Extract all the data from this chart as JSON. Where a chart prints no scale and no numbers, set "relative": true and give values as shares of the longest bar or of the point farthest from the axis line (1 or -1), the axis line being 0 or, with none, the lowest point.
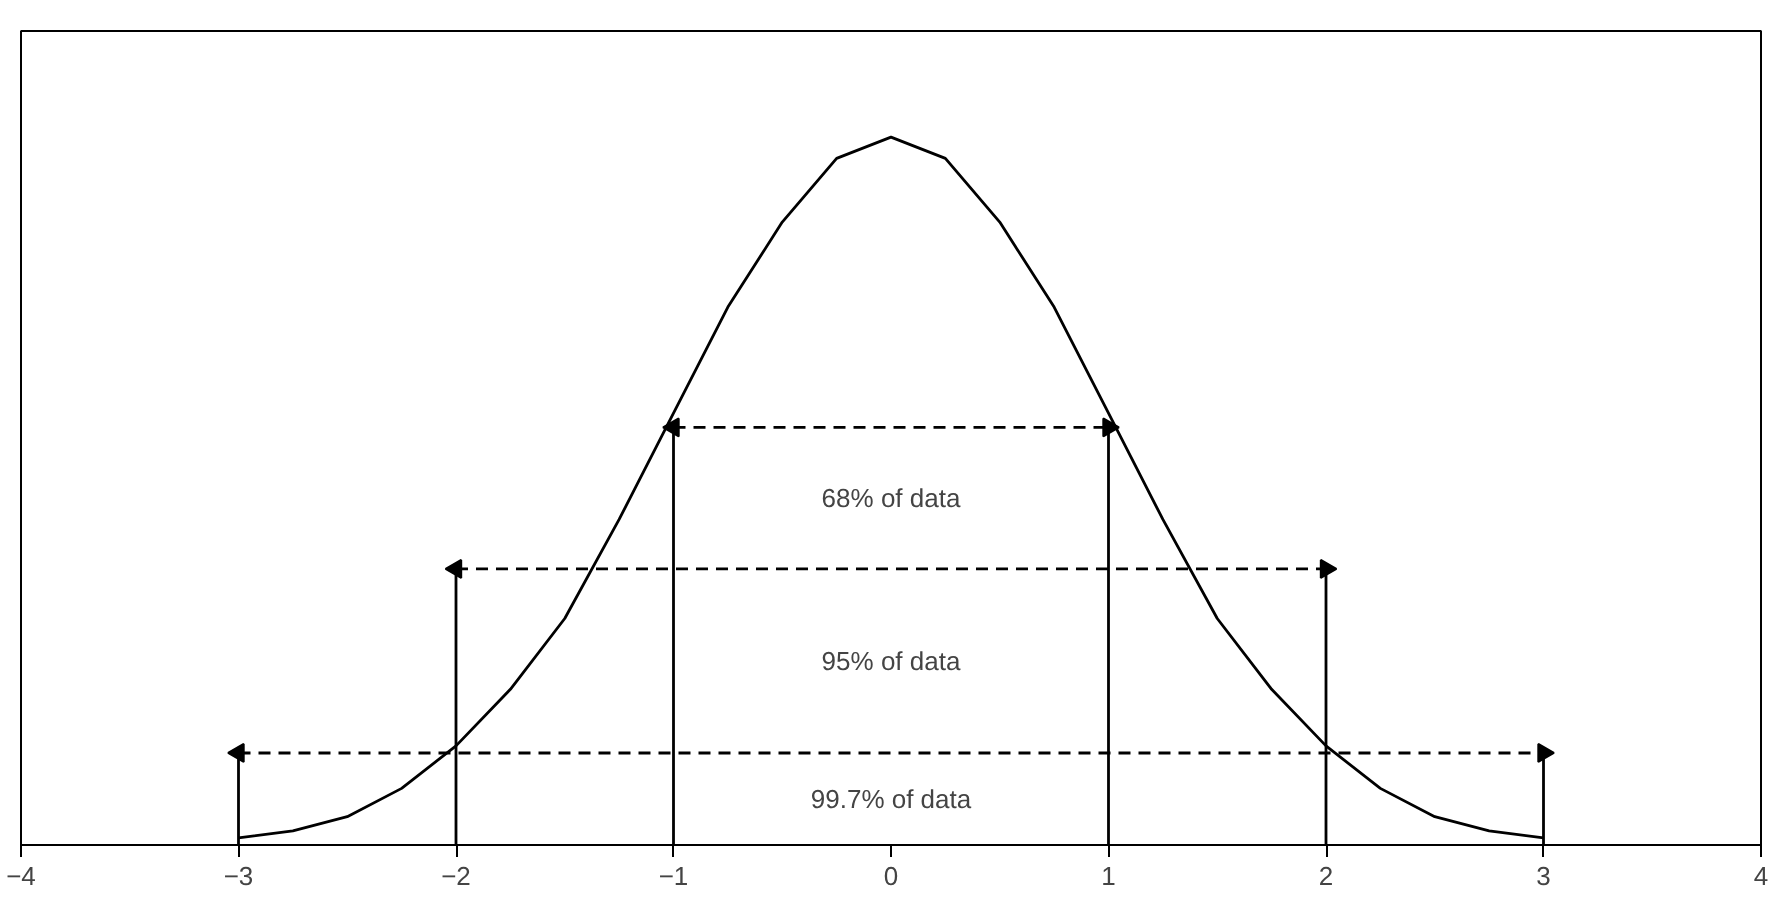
{
  "chart_data": {
    "type": "line",
    "relative": true,
    "x": [
      -3,
      -2.75,
      -2.5,
      -2.25,
      -2,
      -1.75,
      -1.5,
      -1.25,
      -1,
      -0.75,
      -0.5,
      -0.25,
      0,
      0.25,
      0.5,
      0.75,
      1,
      1.25,
      1.5,
      1.75,
      2,
      2.25,
      2.5,
      2.75,
      3
    ],
    "series": [
      {
        "color": "#000000",
        "values": [
          0.01,
          0.02,
          0.04,
          0.08,
          0.14,
          0.22,
          0.32,
          0.46,
          0.61,
          0.76,
          0.88,
          0.97,
          1,
          0.97,
          0.88,
          0.76,
          0.61,
          0.46,
          0.32,
          0.22,
          0.14,
          0.08,
          0.04,
          0.02,
          0.01
        ]
      },
      {
        "color": "#000000",
        "x": [
          -1,
          1
        ],
        "values": [
          0.59,
          0.59
        ],
        "line_style": "dashed",
        "marker": "triangle"
      },
      {
        "color": "#000000",
        "x": [
          -2,
          2
        ],
        "values": [
          0.39,
          0.39
        ],
        "line_style": "dashed",
        "marker": "triangle"
      },
      {
        "color": "#000000",
        "x": [
          -3,
          3
        ],
        "values": [
          0.13,
          0.13
        ],
        "line_style": "dashed",
        "marker": "triangle"
      },
      {
        "color": "#000000",
        "x": [
          -1,
          -1
        ],
        "values": [
          0,
          0.59
        ]
      },
      {
        "color": "#000000",
        "x": [
          1,
          1
        ],
        "values": [
          0,
          0.59
        ]
      },
      {
        "color": "#000000",
        "x": [
          -2,
          -2
        ],
        "values": [
          0,
          0.39
        ]
      },
      {
        "color": "#000000",
        "x": [
          2,
          2
        ],
        "values": [
          0,
          0.39
        ]
      },
      {
        "color": "#000000",
        "x": [
          -3,
          -3
        ],
        "values": [
          0,
          0.13
        ]
      },
      {
        "color": "#000000",
        "x": [
          3,
          3
        ],
        "values": [
          0,
          0.13
        ]
      }
    ],
    "xlim": [
      -4,
      4
    ],
    "xticks": [
      -4,
      -3,
      -2,
      -1,
      0,
      1,
      2,
      3,
      4
    ],
    "annotations": [
      "68% of data",
      "95% of data",
      "99.7% of data"
    ],
    "grid": false,
    "marker": "none",
    "line_style": "solid"
  }
}
